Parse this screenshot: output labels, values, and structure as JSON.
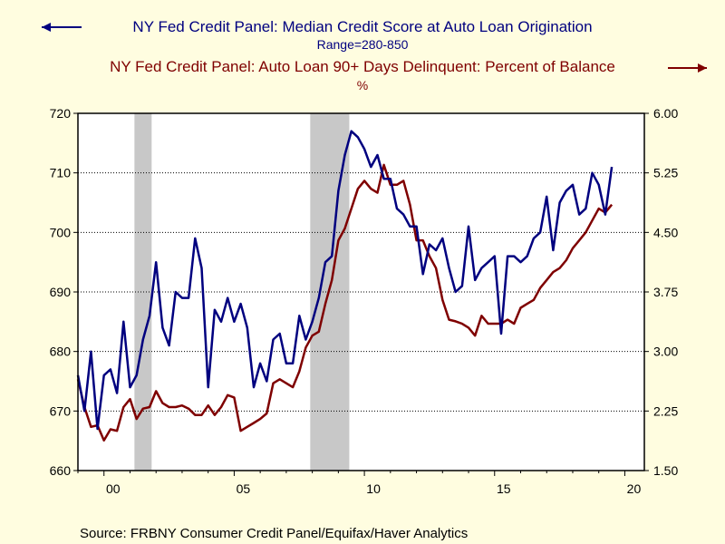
{
  "chart_data": {
    "type": "line",
    "legend": [
      {
        "series": 0,
        "title": "NY Fed Credit Panel: Median Credit Score at Auto Loan Origination",
        "subtitle": "Range=280-850",
        "axis": "left"
      },
      {
        "series": 1,
        "title": "NY Fed Credit Panel: Auto Loan 90+ Days Delinquent: Percent of Balance",
        "subtitle": "%",
        "axis": "right"
      }
    ],
    "source": "Source:  FRBNY Consumer Credit Panel/Equifax/Haver Analytics",
    "x_axis": {
      "range": [
        1999.0,
        2020.75
      ],
      "ticks": [
        2000,
        2005,
        2010,
        2015,
        2020
      ],
      "tick_labels": [
        "00",
        "05",
        "10",
        "15",
        "20"
      ]
    },
    "y_left": {
      "range": [
        660,
        720
      ],
      "ticks": [
        660,
        670,
        680,
        690,
        700,
        710,
        720
      ],
      "tick_labels": [
        "660",
        "670",
        "680",
        "690",
        "700",
        "710",
        "720"
      ]
    },
    "y_right": {
      "range": [
        1.5,
        6.0
      ],
      "ticks": [
        1.5,
        2.25,
        3.0,
        3.75,
        4.5,
        5.25,
        6.0
      ],
      "tick_labels": [
        "1.50",
        "2.25",
        "3.00",
        "3.75",
        "4.50",
        "5.25",
        "6.00"
      ]
    },
    "recessions": [
      [
        2001.17,
        2001.83
      ],
      [
        2007.92,
        2009.42
      ]
    ],
    "grid": true,
    "colors": {
      "score": "#00007f",
      "delinquency": "#7f0000",
      "recession": "#c8c8c8",
      "background": "#fffde0",
      "plot": "#ffffff"
    },
    "series": [
      {
        "name": "Median Credit Score at Auto Loan Origination",
        "axis": "left",
        "x": [
          1999.0,
          1999.25,
          1999.5,
          1999.75,
          2000.0,
          2000.25,
          2000.5,
          2000.75,
          2001.0,
          2001.25,
          2001.5,
          2001.75,
          2002.0,
          2002.25,
          2002.5,
          2002.75,
          2003.0,
          2003.25,
          2003.5,
          2003.75,
          2004.0,
          2004.25,
          2004.5,
          2004.75,
          2005.0,
          2005.25,
          2005.5,
          2005.75,
          2006.0,
          2006.25,
          2006.5,
          2006.75,
          2007.0,
          2007.25,
          2007.5,
          2007.75,
          2008.0,
          2008.25,
          2008.5,
          2008.75,
          2009.0,
          2009.25,
          2009.5,
          2009.75,
          2010.0,
          2010.25,
          2010.5,
          2010.75,
          2011.0,
          2011.25,
          2011.5,
          2011.75,
          2012.0,
          2012.25,
          2012.5,
          2012.75,
          2013.0,
          2013.25,
          2013.5,
          2013.75,
          2014.0,
          2014.25,
          2014.5,
          2014.75,
          2015.0,
          2015.25,
          2015.5,
          2015.75,
          2016.0,
          2016.25,
          2016.5,
          2016.75,
          2017.0,
          2017.25,
          2017.5,
          2017.75,
          2018.0,
          2018.25,
          2018.5,
          2018.75,
          2019.0,
          2019.25,
          2019.5
        ],
        "values": [
          676,
          670,
          680,
          667,
          676,
          677,
          673,
          685,
          674,
          676,
          682,
          686,
          695,
          684,
          681,
          690,
          689,
          689,
          699,
          694,
          674,
          687,
          685,
          689,
          685,
          688,
          684,
          674,
          678,
          675,
          682,
          683,
          678,
          678,
          686,
          682,
          685,
          689,
          695,
          696,
          707,
          713,
          717,
          716,
          714,
          711,
          713,
          709,
          709,
          704,
          703,
          701,
          701,
          693,
          698,
          697,
          699,
          694,
          690,
          691,
          701,
          692,
          694,
          695,
          696,
          683,
          696,
          696,
          695,
          696,
          699,
          700,
          706,
          697,
          705,
          707,
          708,
          703,
          704,
          710,
          708,
          703,
          711
        ]
      },
      {
        "name": "Auto Loan 90+ Days Delinquent: Percent of Balance",
        "axis": "right",
        "x": [
          1999.0,
          1999.25,
          1999.5,
          1999.75,
          2000.0,
          2000.25,
          2000.5,
          2000.75,
          2001.0,
          2001.25,
          2001.5,
          2001.75,
          2002.0,
          2002.25,
          2002.5,
          2002.75,
          2003.0,
          2003.25,
          2003.5,
          2003.75,
          2004.0,
          2004.25,
          2004.5,
          2004.75,
          2005.0,
          2005.25,
          2005.5,
          2005.75,
          2006.0,
          2006.25,
          2006.5,
          2006.75,
          2007.0,
          2007.25,
          2007.5,
          2007.75,
          2008.0,
          2008.25,
          2008.5,
          2008.75,
          2009.0,
          2009.25,
          2009.5,
          2009.75,
          2010.0,
          2010.25,
          2010.5,
          2010.75,
          2011.0,
          2011.25,
          2011.5,
          2011.75,
          2012.0,
          2012.25,
          2012.5,
          2012.75,
          2013.0,
          2013.25,
          2013.5,
          2013.75,
          2014.0,
          2014.25,
          2014.5,
          2014.75,
          2015.0,
          2015.25,
          2015.5,
          2015.75,
          2016.0,
          2016.25,
          2016.5,
          2016.75,
          2017.0,
          2017.25,
          2017.5,
          2017.75,
          2018.0,
          2018.25,
          2018.5,
          2018.75,
          2019.0,
          2019.25,
          2019.5
        ],
        "values": [
          2.65,
          2.3,
          2.05,
          2.07,
          1.88,
          2.02,
          2.0,
          2.3,
          2.4,
          2.15,
          2.28,
          2.3,
          2.5,
          2.35,
          2.3,
          2.3,
          2.32,
          2.28,
          2.2,
          2.2,
          2.32,
          2.2,
          2.3,
          2.45,
          2.42,
          2.0,
          2.05,
          2.1,
          2.15,
          2.22,
          2.6,
          2.65,
          2.6,
          2.55,
          2.75,
          3.05,
          3.2,
          3.25,
          3.6,
          3.9,
          4.4,
          4.55,
          4.8,
          5.05,
          5.15,
          5.05,
          5.0,
          5.35,
          5.1,
          5.1,
          5.15,
          4.85,
          4.4,
          4.4,
          4.2,
          4.05,
          3.65,
          3.4,
          3.38,
          3.35,
          3.3,
          3.2,
          3.45,
          3.35,
          3.35,
          3.35,
          3.4,
          3.35,
          3.55,
          3.6,
          3.65,
          3.8,
          3.9,
          4.0,
          4.05,
          4.15,
          4.3,
          4.4,
          4.5,
          4.65,
          4.8,
          4.75,
          4.85
        ]
      }
    ]
  }
}
